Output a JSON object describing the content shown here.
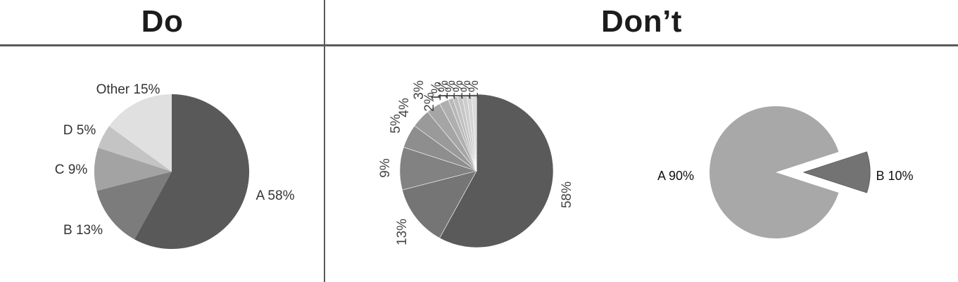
{
  "headings": {
    "do": "Do",
    "dont": "Don’t"
  },
  "chart_data": [
    {
      "id": "do-pie",
      "type": "pie",
      "title": "",
      "labels": [
        "A 58%",
        "B 13%",
        "C 9%",
        "D 5%",
        "Other 15%"
      ],
      "categories": [
        "A",
        "B",
        "C",
        "D",
        "Other"
      ],
      "values": [
        58,
        13,
        9,
        5,
        15
      ],
      "colors": [
        "#595959",
        "#7c7c7c",
        "#a3a3a3",
        "#c4c4c4",
        "#e0e0e0"
      ]
    },
    {
      "id": "dont-pie-many-slices",
      "type": "pie",
      "title": "",
      "values": [
        58,
        13,
        9,
        5,
        4,
        3,
        2,
        1,
        1,
        1,
        1,
        1,
        1
      ],
      "labels": [
        "58%",
        "13%",
        "9%",
        "5%",
        "4%",
        "3%",
        "2%",
        "1%",
        "1%",
        "1%",
        "1%",
        "1%",
        "1%"
      ],
      "colors": [
        "#5a5a5a",
        "#757575",
        "#828282",
        "#8e8e8e",
        "#9a9a9a",
        "#a5a5a5",
        "#afafaf",
        "#b8b8b8",
        "#bfbfbf",
        "#c6c6c6",
        "#cdcdcd",
        "#d4d4d4",
        "#dbdbdb"
      ],
      "note_labels_rotated": true
    },
    {
      "id": "dont-pie-exploded",
      "type": "pie",
      "title": "",
      "categories": [
        "A",
        "B"
      ],
      "values": [
        90,
        10
      ],
      "labels": [
        "A 90%",
        "B 10%"
      ],
      "colors": [
        "#a8a8a8",
        "#737373"
      ],
      "exploded": "B"
    }
  ]
}
